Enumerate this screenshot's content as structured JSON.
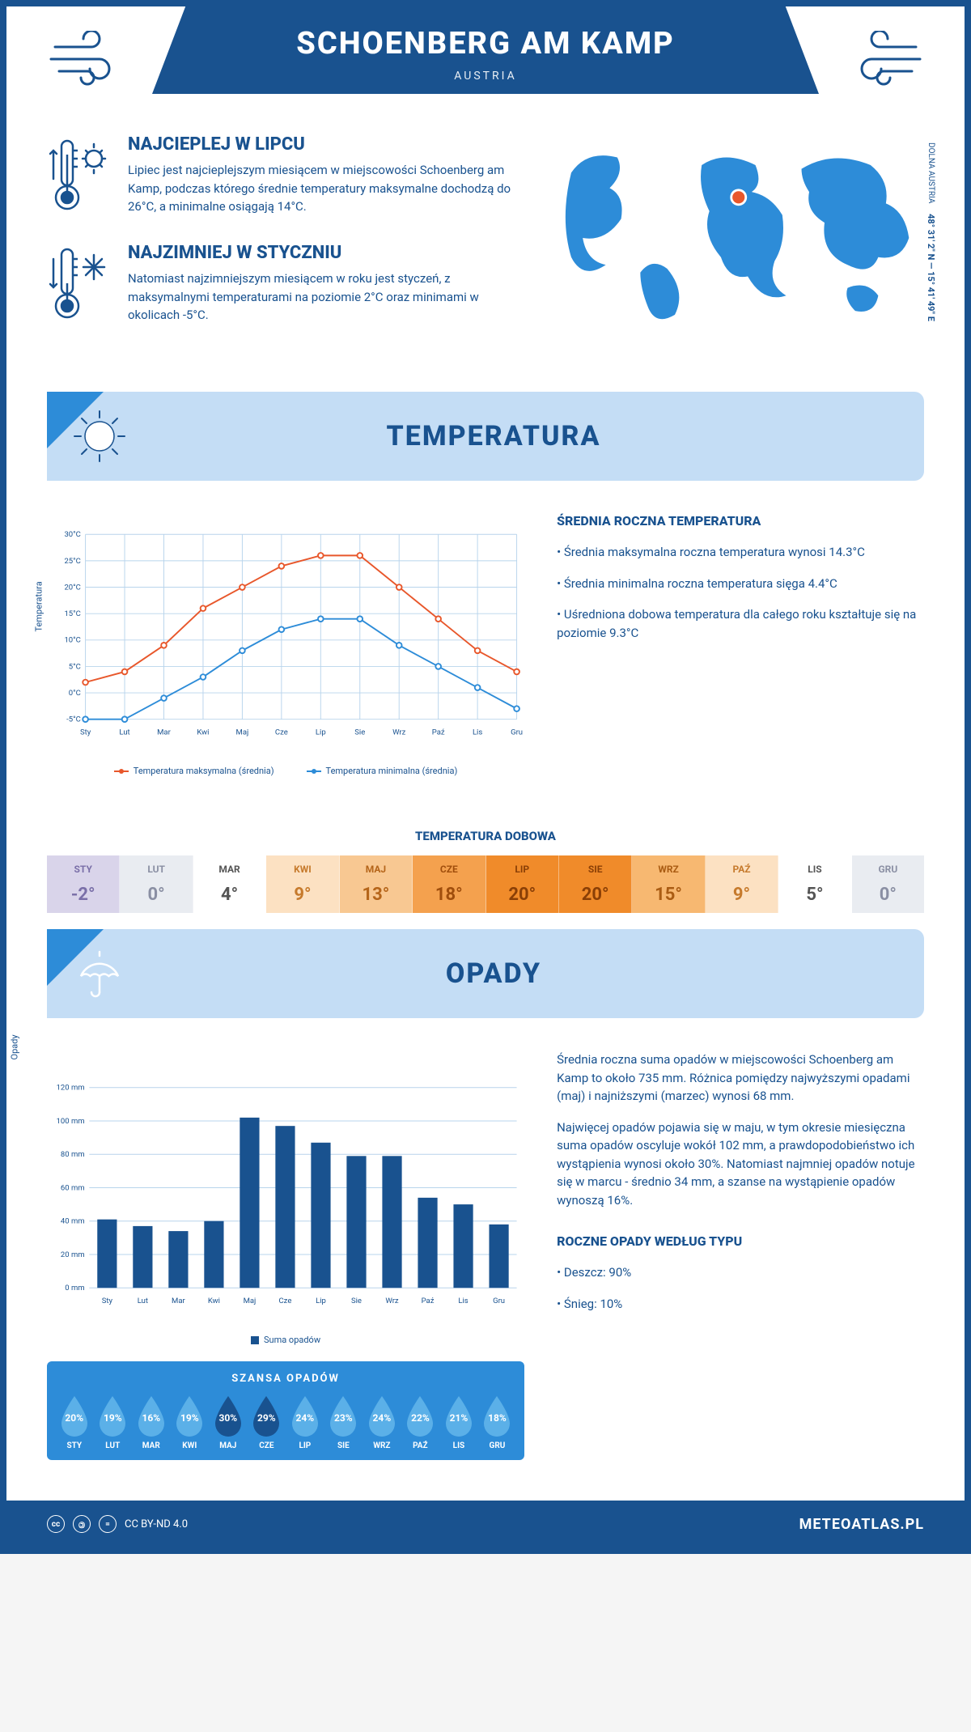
{
  "header": {
    "title": "SCHOENBERG AM KAMP",
    "country": "AUSTRIA"
  },
  "coords": {
    "lat": "48° 31' 2\" N",
    "lon": "15° 41' 49\" E",
    "region": "DOLNA AUSTRIA"
  },
  "facts": {
    "warm": {
      "title": "NAJCIEPLEJ W LIPCU",
      "text": "Lipiec jest najcieplejszym miesiącem w miejscowości Schoenberg am Kamp, podczas którego średnie temperatury maksymalne dochodzą do 26°C, a minimalne osiągają 14°C."
    },
    "cold": {
      "title": "NAJZIMNIEJ W STYCZNIU",
      "text": "Natomiast najzimniejszym miesiącem w roku jest styczeń, z maksymalnymi temperaturami na poziomie 2°C oraz minimami w okolicach -5°C."
    }
  },
  "sections": {
    "temperature": "TEMPERATURA",
    "precipitation": "OPADY"
  },
  "temp_chart": {
    "type": "line",
    "months": [
      "Sty",
      "Lut",
      "Mar",
      "Kwi",
      "Maj",
      "Cze",
      "Lip",
      "Sie",
      "Wrz",
      "Paź",
      "Lis",
      "Gru"
    ],
    "y_label": "Temperatura",
    "y_ticks": [
      "-5°C",
      "0°C",
      "5°C",
      "10°C",
      "15°C",
      "20°C",
      "25°C",
      "30°C"
    ],
    "ylim": [
      -5,
      30
    ],
    "series": {
      "max": {
        "label": "Temperatura maksymalna (średnia)",
        "color": "#e8572b",
        "values": [
          2,
          4,
          9,
          16,
          20,
          24,
          26,
          26,
          20,
          14,
          8,
          4
        ]
      },
      "min": {
        "label": "Temperatura minimalna (średnia)",
        "color": "#2d8cd8",
        "values": [
          -5,
          -5,
          -1,
          3,
          8,
          12,
          14,
          14,
          9,
          5,
          1,
          -3
        ]
      }
    },
    "grid_color": "#b8d4ec",
    "background": "#ffffff"
  },
  "temp_info": {
    "heading": "ŚREDNIA ROCZNA TEMPERATURA",
    "bullets": [
      "Średnia maksymalna roczna temperatura wynosi 14.3°C",
      "Średnia minimalna roczna temperatura sięga 4.4°C",
      "Uśredniona dobowa temperatura dla całego roku kształtuje się na poziomie 9.3°C"
    ]
  },
  "daily": {
    "title": "TEMPERATURA DOBOWA",
    "cells": [
      {
        "m": "STY",
        "v": "-2°",
        "bg": "#d9d4ea",
        "fg": "#7a6fa8"
      },
      {
        "m": "LUT",
        "v": "0°",
        "bg": "#e9ecf1",
        "fg": "#8a8fa3"
      },
      {
        "m": "MAR",
        "v": "4°",
        "bg": "#ffffff",
        "fg": "#555"
      },
      {
        "m": "KWI",
        "v": "9°",
        "bg": "#fce1c2",
        "fg": "#c67a2c"
      },
      {
        "m": "MAJ",
        "v": "13°",
        "bg": "#f8c892",
        "fg": "#b5651a"
      },
      {
        "m": "CZE",
        "v": "18°",
        "bg": "#f4a14e",
        "fg": "#a04e0c"
      },
      {
        "m": "LIP",
        "v": "20°",
        "bg": "#f08b2a",
        "fg": "#8a3f06"
      },
      {
        "m": "SIE",
        "v": "20°",
        "bg": "#f08b2a",
        "fg": "#8a3f06"
      },
      {
        "m": "WRZ",
        "v": "15°",
        "bg": "#f7b871",
        "fg": "#aa5c13"
      },
      {
        "m": "PAŹ",
        "v": "9°",
        "bg": "#fce1c2",
        "fg": "#c67a2c"
      },
      {
        "m": "LIS",
        "v": "5°",
        "bg": "#ffffff",
        "fg": "#555"
      },
      {
        "m": "GRU",
        "v": "0°",
        "bg": "#e9ecf1",
        "fg": "#8a8fa3"
      }
    ]
  },
  "precip_chart": {
    "type": "bar",
    "months": [
      "Sty",
      "Lut",
      "Mar",
      "Kwi",
      "Maj",
      "Cze",
      "Lip",
      "Sie",
      "Wrz",
      "Paź",
      "Lis",
      "Gru"
    ],
    "y_label": "Opady",
    "y_ticks": [
      "0 mm",
      "20 mm",
      "40 mm",
      "60 mm",
      "80 mm",
      "100 mm",
      "120 mm"
    ],
    "ylim": [
      0,
      120
    ],
    "values": [
      41,
      37,
      34,
      40,
      102,
      97,
      87,
      79,
      79,
      54,
      50,
      38
    ],
    "bar_color": "#19528f",
    "grid_color": "#b8d4ec",
    "legend": "Suma opadów"
  },
  "precip_info": {
    "p1": "Średnia roczna suma opadów w miejscowości Schoenberg am Kamp to około 735 mm. Różnica pomiędzy najwyższymi opadami (maj) i najniższymi (marzec) wynosi 68 mm.",
    "p2": "Najwięcej opadów pojawia się w maju, w tym okresie miesięczna suma opadów oscyluje wokół 102 mm, a prawdopodobieństwo ich wystąpienia wynosi około 30%. Natomiast najmniej opadów notuje się w marcu - średnio 34 mm, a szanse na wystąpienie opadów wynoszą 16%."
  },
  "rain_chance": {
    "title": "SZANSA OPADÓW",
    "months": [
      "STY",
      "LUT",
      "MAR",
      "KWI",
      "MAJ",
      "CZE",
      "LIP",
      "SIE",
      "WRZ",
      "PAŹ",
      "LIS",
      "GRU"
    ],
    "values": [
      "20%",
      "19%",
      "16%",
      "19%",
      "30%",
      "29%",
      "24%",
      "23%",
      "24%",
      "22%",
      "21%",
      "18%"
    ],
    "fill_light": "#5bb0e8",
    "fill_dark": "#19528f",
    "dark_indices": [
      4,
      5
    ]
  },
  "precip_type": {
    "heading": "ROCZNE OPADY WEDŁUG TYPU",
    "bullets": [
      "Deszcz: 90%",
      "Śnieg: 10%"
    ]
  },
  "footer": {
    "license": "CC BY-ND 4.0",
    "site": "METEOATLAS.PL"
  }
}
